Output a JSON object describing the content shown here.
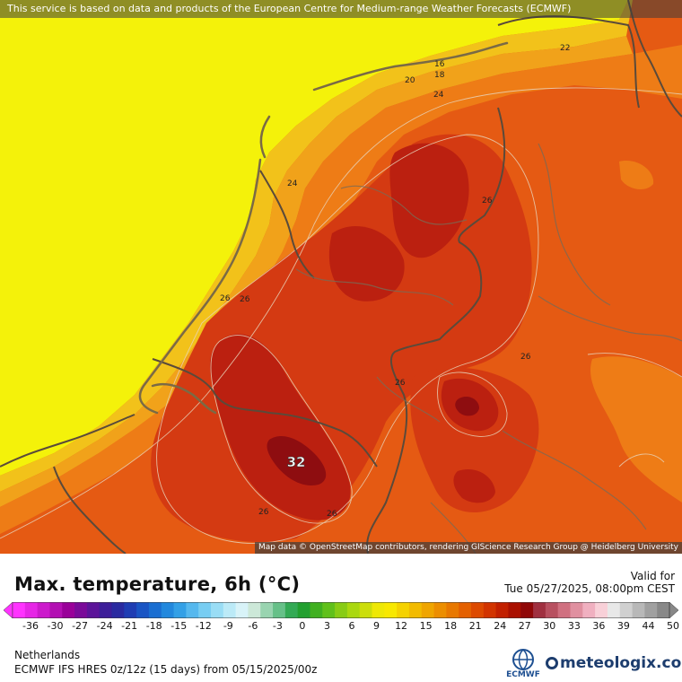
{
  "map": {
    "attribution_top": "This service is based on data and products of the European Centre for Medium-range Weather Forecasts (ECMWF)",
    "attribution_bottom": "Map data © OpenStreetMap contributors, rendering GIScience Research Group @ Heidelberg University",
    "peak_label": "32",
    "contour_labels": [
      "16",
      "18",
      "20",
      "22",
      "24",
      "24",
      "26",
      "26",
      "26",
      "26",
      "26",
      "26",
      "26"
    ],
    "colors": {
      "sea_yellow": "#f4f20a",
      "t20": "#f2c21a",
      "t22": "#f1a21a",
      "t24": "#ee7c16",
      "t26": "#e55a13",
      "t28": "#d43a12",
      "t30": "#bb2010",
      "t32": "#8e0d10",
      "border": "#5a4a3a"
    }
  },
  "footer": {
    "title": "Max. temperature, 6h (°C)",
    "valid_label": "Valid for",
    "valid_date": "Tue 05/27/2025, 08:00pm CEST",
    "region": "Netherlands",
    "model": "ECMWF IFS HRES 0z/12z (15 days) from  05/15/2025/00z",
    "ecmwf_logo_text": "ECMWF",
    "brand": "meteologix.com",
    "scale_ticks": [
      "-36",
      "-30",
      "-27",
      "-24",
      "-21",
      "-18",
      "-15",
      "-12",
      "-9",
      "-6",
      "-3",
      "0",
      "3",
      "6",
      "9",
      "12",
      "15",
      "18",
      "21",
      "24",
      "27",
      "30",
      "33",
      "36",
      "39",
      "44",
      "50"
    ],
    "scale_colors": [
      "#ff33ff",
      "#e626e6",
      "#cc1acc",
      "#b30fb3",
      "#990099",
      "#7a0a99",
      "#5c1499",
      "#3d1e99",
      "#2a2aa0",
      "#1f3db3",
      "#1a55c4",
      "#1a6ed1",
      "#2288dd",
      "#33a0e6",
      "#55b8ee",
      "#77cdf2",
      "#99ddf5",
      "#bbeaf7",
      "#d8f3f8",
      "#cce8d8",
      "#99d4b0",
      "#66c088",
      "#33aa55",
      "#22a030",
      "#40b020",
      "#60c01a",
      "#88cc14",
      "#aad80f",
      "#ccde0a",
      "#eee805",
      "#f8e800",
      "#f5d200",
      "#f2bb00",
      "#efa500",
      "#ec8e00",
      "#e87800",
      "#e46000",
      "#dd4a00",
      "#d23400",
      "#c22000",
      "#aa1000",
      "#900808",
      "#a03040",
      "#b85060",
      "#d07080",
      "#e090a0",
      "#f0b0c0",
      "#f8d0d8",
      "#e8e8e8",
      "#d0d0d0",
      "#b8b8b8",
      "#a0a0a0",
      "#888888"
    ]
  }
}
